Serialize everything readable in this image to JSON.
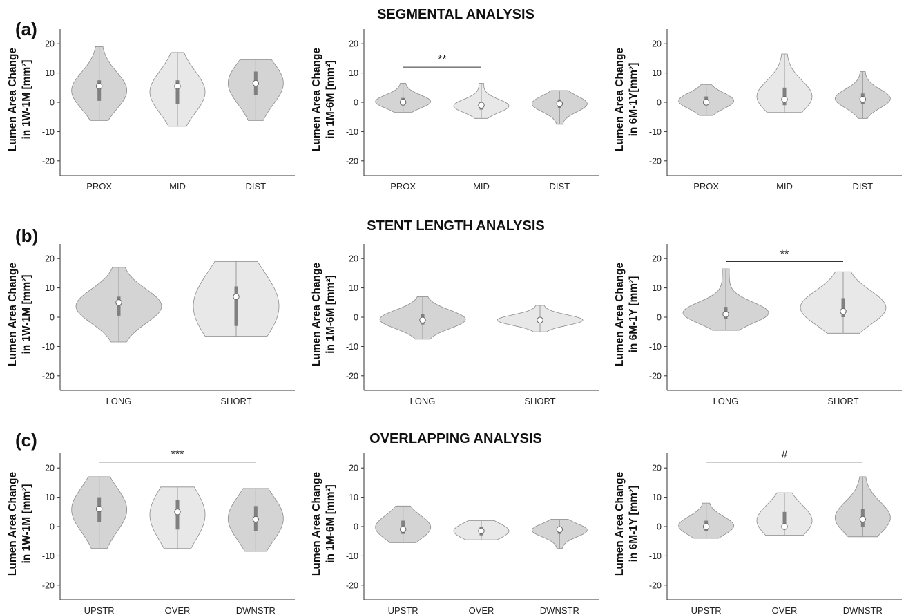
{
  "figure": {
    "sections": [
      {
        "label": "(a)",
        "title": "SEGMENTAL ANALYSIS"
      },
      {
        "label": "(b)",
        "title": "STENT LENGTH ANALYSIS"
      },
      {
        "label": "(c)",
        "title": "OVERLAPPING ANALYSIS"
      }
    ]
  },
  "colors": {
    "dark_violin": "#d4d4d4",
    "light_violin": "#e8e8e8",
    "outline": "#8c8c8c",
    "box": "#808080"
  },
  "chart_data": [
    {
      "type": "violin",
      "ylim": [
        -25,
        25
      ],
      "yticks": [
        -20,
        -10,
        0,
        10,
        20
      ],
      "ylabel_lines": [
        "Lumen Area Change",
        "in 1W-1M [mm²]"
      ],
      "categories": [
        "PROX",
        "MID",
        "DIST"
      ],
      "shades": [
        "dark",
        "light",
        "dark"
      ],
      "medians": [
        5.5,
        5.5,
        6.5
      ],
      "q1": [
        0.5,
        -0.5,
        2.5
      ],
      "q3": [
        7.5,
        7.5,
        10.5
      ],
      "min": [
        -6.2,
        -8.2,
        -6.2
      ],
      "max": [
        19,
        17,
        14.5
      ],
      "significance": []
    },
    {
      "type": "violin",
      "ylim": [
        -25,
        25
      ],
      "yticks": [
        -20,
        -10,
        0,
        10,
        20
      ],
      "ylabel_lines": [
        "Lumen Area Change",
        "in 1M-6M [mm²]"
      ],
      "categories": [
        "PROX",
        "MID",
        "DIST"
      ],
      "shades": [
        "dark",
        "light",
        "dark"
      ],
      "medians": [
        0,
        -1,
        -0.5
      ],
      "q1": [
        -1,
        -2.5,
        -2
      ],
      "q3": [
        1.5,
        0,
        1
      ],
      "min": [
        -3.5,
        -5.5,
        -7.5
      ],
      "max": [
        6.5,
        6.5,
        4
      ],
      "significance": [
        {
          "from": 0,
          "to": 1,
          "label": "**",
          "y": 12
        }
      ]
    },
    {
      "type": "violin",
      "ylim": [
        -25,
        25
      ],
      "yticks": [
        -20,
        -10,
        0,
        10,
        20
      ],
      "ylabel_lines": [
        "Lumen Area Change",
        "in 6M-1Y[mm²]"
      ],
      "categories": [
        "PROX",
        "MID",
        "DIST"
      ],
      "shades": [
        "dark",
        "light",
        "dark"
      ],
      "medians": [
        0,
        1,
        1
      ],
      "q1": [
        -1,
        -1,
        -0.5
      ],
      "q3": [
        2,
        5,
        3
      ],
      "min": [
        -4.5,
        -3.5,
        -5.5
      ],
      "max": [
        6,
        16.5,
        10.5
      ],
      "significance": []
    },
    {
      "type": "violin",
      "ylim": [
        -25,
        25
      ],
      "yticks": [
        -20,
        -10,
        0,
        10,
        20
      ],
      "ylabel_lines": [
        "Lumen Area Change",
        "in 1W-1M [mm²]"
      ],
      "categories": [
        "LONG",
        "SHORT"
      ],
      "shades": [
        "dark",
        "light"
      ],
      "medians": [
        5,
        7
      ],
      "q1": [
        0.5,
        -3
      ],
      "q3": [
        7,
        10.5
      ],
      "min": [
        -8.5,
        -6.5
      ],
      "max": [
        17,
        19
      ],
      "significance": []
    },
    {
      "type": "violin",
      "ylim": [
        -25,
        25
      ],
      "yticks": [
        -20,
        -10,
        0,
        10,
        20
      ],
      "ylabel_lines": [
        "Lumen Area Change",
        "in 1M-6M [mm²]"
      ],
      "categories": [
        "LONG",
        "SHORT"
      ],
      "shades": [
        "dark",
        "light"
      ],
      "medians": [
        -1,
        -1
      ],
      "q1": [
        -2.5,
        -2
      ],
      "q3": [
        1,
        0
      ],
      "min": [
        -7.5,
        -5
      ],
      "max": [
        7,
        4
      ],
      "significance": []
    },
    {
      "type": "violin",
      "ylim": [
        -25,
        25
      ],
      "yticks": [
        -20,
        -10,
        0,
        10,
        20
      ],
      "ylabel_lines": [
        "Lumen Area Change",
        "in 6M-1Y  [mm²]"
      ],
      "categories": [
        "LONG",
        "SHORT"
      ],
      "shades": [
        "dark",
        "light"
      ],
      "medians": [
        1,
        2
      ],
      "q1": [
        -0.5,
        0
      ],
      "q3": [
        3.5,
        6.5
      ],
      "min": [
        -4.5,
        -5.5
      ],
      "max": [
        16.5,
        15.5
      ],
      "significance": [
        {
          "from": 0,
          "to": 1,
          "label": "**",
          "y": 19
        }
      ]
    },
    {
      "type": "violin",
      "ylim": [
        -25,
        25
      ],
      "yticks": [
        -20,
        -10,
        0,
        10,
        20
      ],
      "ylabel_lines": [
        "Lumen Area Change",
        "in 1W-1M [mm²]"
      ],
      "categories": [
        "UPSTR",
        "OVER",
        "DWNSTR"
      ],
      "shades": [
        "dark",
        "light",
        "dark"
      ],
      "medians": [
        6,
        5,
        2.5
      ],
      "q1": [
        1.5,
        -1,
        -1.5
      ],
      "q3": [
        10,
        9,
        7
      ],
      "min": [
        -7.5,
        -7.5,
        -8.5
      ],
      "max": [
        17,
        13.5,
        13
      ],
      "significance": [
        {
          "from": 0,
          "to": 2,
          "label": "***",
          "y": 22
        }
      ]
    },
    {
      "type": "violin",
      "ylim": [
        -25,
        25
      ],
      "yticks": [
        -20,
        -10,
        0,
        10,
        20
      ],
      "ylabel_lines": [
        "Lumen Area Change",
        "in 1M-6M [mm²]"
      ],
      "categories": [
        "UPSTR",
        "OVER",
        "DWNSTR"
      ],
      "shades": [
        "dark",
        "light",
        "dark"
      ],
      "medians": [
        -1,
        -1.5,
        -1
      ],
      "q1": [
        -2.5,
        -3,
        -2.5
      ],
      "q3": [
        2,
        0,
        0
      ],
      "min": [
        -5.5,
        -4.5,
        -7.5
      ],
      "max": [
        7,
        2,
        2.5
      ],
      "significance": []
    },
    {
      "type": "violin",
      "ylim": [
        -25,
        25
      ],
      "yticks": [
        -20,
        -10,
        0,
        10,
        20
      ],
      "ylabel_lines": [
        "Lumen Area Change",
        "in 6M-1Y  [mm²]"
      ],
      "categories": [
        "UPSTR",
        "OVER",
        "DWNSTR"
      ],
      "shades": [
        "dark",
        "light",
        "dark"
      ],
      "medians": [
        0,
        0,
        2.5
      ],
      "q1": [
        -1.5,
        -1,
        0
      ],
      "q3": [
        2,
        5,
        6
      ],
      "min": [
        -4,
        -3,
        -3.5
      ],
      "max": [
        8,
        11.5,
        17
      ],
      "significance": [
        {
          "from": 0,
          "to": 2,
          "label": "#",
          "y": 22
        }
      ]
    }
  ]
}
